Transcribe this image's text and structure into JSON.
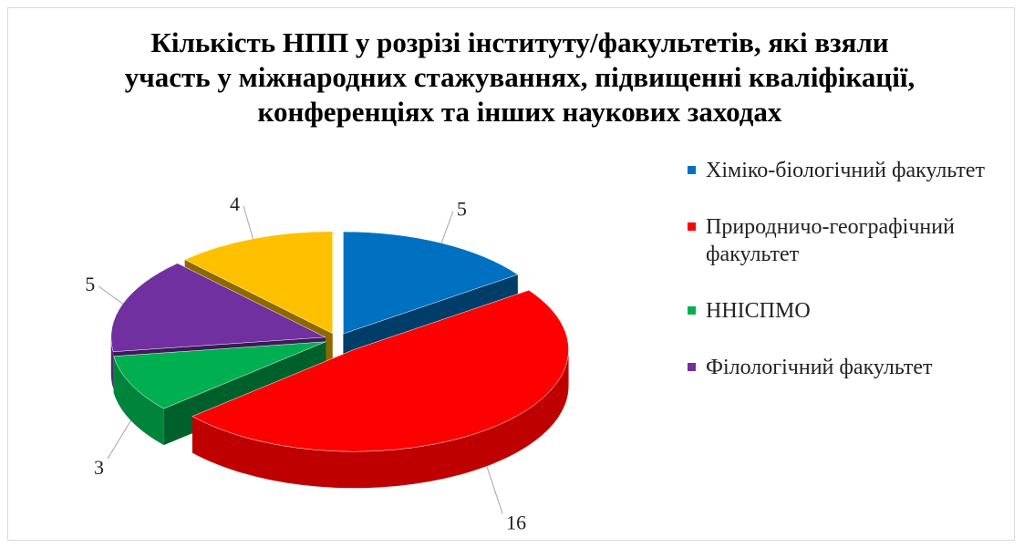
{
  "chart_data": {
    "type": "pie3d",
    "title": "Кількість НПП у розрізі інституту/факультетів, які взяли участь у міжнародних стажуваннях, підвищенні кваліфікації, конференціях та інших наукових заходах",
    "categories": [
      "Хіміко-біологічний факультет",
      "Природничо-географічний факультет",
      "ННІСПМО",
      "Філологічний факультет",
      null
    ],
    "values": [
      5,
      16,
      3,
      5,
      4
    ],
    "colors": [
      "#0070c0",
      "#ff0000",
      "#00b050",
      "#7030a0",
      "#ffc000"
    ],
    "legend": "right"
  }
}
